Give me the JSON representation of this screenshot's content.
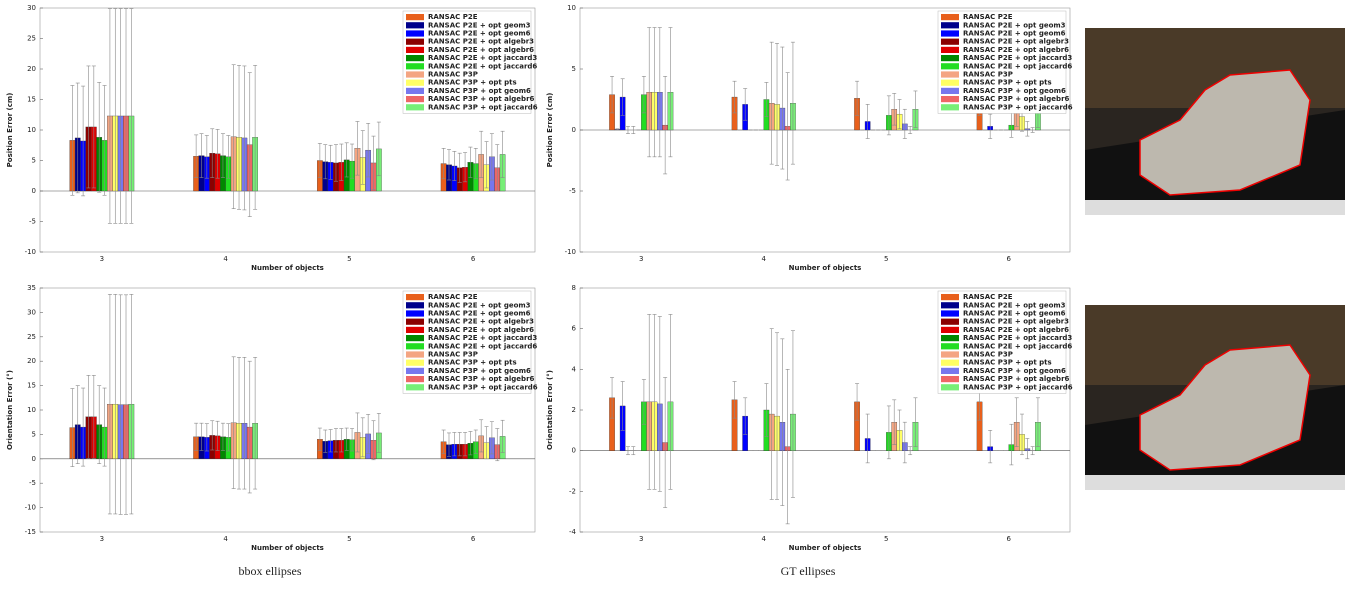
{
  "chart_data": [
    {
      "type": "bar",
      "xlabel": "Number of objects",
      "ylabel": "Position Error (cm)",
      "categories": [
        "3",
        "4",
        "5",
        "6"
      ],
      "ylim": [
        -10,
        30
      ],
      "yticks": [
        -10,
        -5,
        0,
        5,
        10,
        15,
        20,
        25,
        30
      ],
      "legend": "upper right",
      "series": [
        {
          "name": "RANSAC P2E",
          "color": "#e8601c",
          "values": [
            8.3,
            5.7,
            5.0,
            4.5
          ],
          "errors": [
            9,
            3.5,
            2.8,
            2.5
          ]
        },
        {
          "name": "RANSAC P2E + opt geom3",
          "color": "#00008b",
          "values": [
            8.7,
            5.8,
            4.8,
            4.3
          ],
          "errors": [
            9,
            3.6,
            2.8,
            2.5
          ]
        },
        {
          "name": "RANSAC P2E + opt geom6",
          "color": "#0000ff",
          "values": [
            8.2,
            5.6,
            4.7,
            4.1
          ],
          "errors": [
            9,
            3.5,
            2.8,
            2.4
          ]
        },
        {
          "name": "RANSAC P2E + opt algebr3",
          "color": "#8b0000",
          "values": [
            10.5,
            6.2,
            4.6,
            3.8
          ],
          "errors": [
            10,
            4,
            3,
            2.4
          ]
        },
        {
          "name": "RANSAC P2E + opt algebr6",
          "color": "#dd0000",
          "values": [
            10.5,
            6.1,
            4.7,
            3.9
          ],
          "errors": [
            10,
            4,
            3,
            2.4
          ]
        },
        {
          "name": "RANSAC P2E + opt jaccard3",
          "color": "#008800",
          "values": [
            8.8,
            5.8,
            5.1,
            4.7
          ],
          "errors": [
            9,
            3.6,
            2.8,
            2.5
          ]
        },
        {
          "name": "RANSAC P2E + opt jaccard6",
          "color": "#22dd22",
          "values": [
            8.3,
            5.6,
            4.9,
            4.5
          ],
          "errors": [
            9,
            3.5,
            2.8,
            2.5
          ]
        },
        {
          "name": "RANSAC P3P",
          "color": "#f4a582",
          "values": [
            12.3,
            8.9,
            7.0,
            6.0
          ],
          "errors": [
            17.6,
            11.8,
            4.4,
            3.8
          ]
        },
        {
          "name": "RANSAC P3P + opt pts",
          "color": "#ffff66",
          "values": [
            12.3,
            8.8,
            5.5,
            4.3
          ],
          "errors": [
            17.6,
            11.8,
            4.4,
            3.8
          ]
        },
        {
          "name": "RANSAC P3P + opt geom6",
          "color": "#7777ee",
          "values": [
            12.3,
            8.7,
            6.7,
            5.6
          ],
          "errors": [
            17.6,
            11.8,
            4.4,
            3.8
          ]
        },
        {
          "name": "RANSAC P3P + opt algebr6",
          "color": "#ee6666",
          "values": [
            12.3,
            7.6,
            4.6,
            3.8
          ],
          "errors": [
            17.6,
            11.8,
            4.4,
            3.8
          ]
        },
        {
          "name": "RANSAC P3P + opt jaccard6",
          "color": "#77ee77",
          "values": [
            12.3,
            8.8,
            6.9,
            6.0
          ],
          "errors": [
            17.6,
            11.8,
            4.4,
            3.8
          ]
        }
      ]
    },
    {
      "type": "bar",
      "xlabel": "Number of objects",
      "ylabel": "Position Error (cm)",
      "categories": [
        "3",
        "4",
        "5",
        "6"
      ],
      "ylim": [
        -10,
        10
      ],
      "yticks": [
        -10,
        -5,
        0,
        5,
        10
      ],
      "legend": "upper right",
      "series": [
        {
          "name": "RANSAC P2E",
          "color": "#e8601c",
          "values": [
            2.9,
            2.7,
            2.6,
            2.6
          ],
          "errors": [
            1.5,
            1.3,
            1.4,
            1.4
          ]
        },
        {
          "name": "RANSAC P2E + opt geom3",
          "color": "#00008b",
          "values": [
            0.05,
            0,
            0,
            0
          ],
          "errors": [
            0.05,
            0,
            0,
            0
          ]
        },
        {
          "name": "RANSAC P2E + opt geom6",
          "color": "#0000ff",
          "values": [
            2.7,
            2.1,
            0.7,
            0.3
          ],
          "errors": [
            1.5,
            1.3,
            1.4,
            1.0
          ]
        },
        {
          "name": "RANSAC P2E + opt algebr3",
          "color": "#8b0000",
          "values": [
            0,
            0,
            0,
            0
          ],
          "errors": [
            0.3,
            0,
            0,
            0
          ]
        },
        {
          "name": "RANSAC P2E + opt algebr6",
          "color": "#dd0000",
          "values": [
            0,
            0,
            0,
            0
          ],
          "errors": [
            0.3,
            0,
            0,
            0
          ]
        },
        {
          "name": "RANSAC P2E + opt jaccard3",
          "color": "#008800",
          "values": [
            0,
            0,
            0,
            0
          ],
          "errors": [
            0,
            0,
            0,
            0
          ]
        },
        {
          "name": "RANSAC P2E + opt jaccard6",
          "color": "#22dd22",
          "values": [
            2.9,
            2.5,
            1.2,
            0.4
          ],
          "errors": [
            1.5,
            1.4,
            1.6,
            1.0
          ]
        },
        {
          "name": "RANSAC P3P",
          "color": "#f4a582",
          "values": [
            3.1,
            2.2,
            1.7,
            1.7
          ],
          "errors": [
            5.3,
            5,
            1.3,
            1.4
          ]
        },
        {
          "name": "RANSAC P3P + opt pts",
          "color": "#ffff66",
          "values": [
            3.1,
            2.1,
            1.3,
            1.1
          ],
          "errors": [
            5.3,
            5,
            1.2,
            1.2
          ]
        },
        {
          "name": "RANSAC P3P + opt geom6",
          "color": "#7777ee",
          "values": [
            3.1,
            1.8,
            0.5,
            0.1
          ],
          "errors": [
            5.3,
            5,
            1.2,
            0.6
          ]
        },
        {
          "name": "RANSAC P3P + opt algebr6",
          "color": "#ee6666",
          "values": [
            0.4,
            0.3,
            0,
            0
          ],
          "errors": [
            4.0,
            4.4,
            0.3,
            0.2
          ]
        },
        {
          "name": "RANSAC P3P + opt jaccard6",
          "color": "#77ee77",
          "values": [
            3.1,
            2.2,
            1.7,
            1.7
          ],
          "errors": [
            5.3,
            5,
            1.5,
            1.5
          ]
        }
      ]
    },
    {
      "type": "bar",
      "xlabel": "Number of objects",
      "ylabel": "Orientation Error (°)",
      "categories": [
        "3",
        "4",
        "5",
        "6"
      ],
      "ylim": [
        -15,
        35
      ],
      "yticks": [
        -15,
        -10,
        -5,
        0,
        5,
        10,
        15,
        20,
        25,
        30,
        35
      ],
      "legend": "upper right",
      "series": [
        {
          "name": "RANSAC P2E",
          "color": "#e8601c",
          "values": [
            6.4,
            4.5,
            4.0,
            3.5
          ],
          "errors": [
            8,
            2.8,
            2.3,
            2.4
          ]
        },
        {
          "name": "RANSAC P2E + opt geom3",
          "color": "#00008b",
          "values": [
            7.0,
            4.5,
            3.6,
            2.9
          ],
          "errors": [
            8,
            2.8,
            2.3,
            2.4
          ]
        },
        {
          "name": "RANSAC P2E + opt geom6",
          "color": "#0000ff",
          "values": [
            6.5,
            4.4,
            3.7,
            3.0
          ],
          "errors": [
            8,
            2.8,
            2.3,
            2.4
          ]
        },
        {
          "name": "RANSAC P2E + opt algebr3",
          "color": "#8b0000",
          "values": [
            8.6,
            4.8,
            3.8,
            3.0
          ],
          "errors": [
            8.5,
            3,
            2.4,
            2.4
          ]
        },
        {
          "name": "RANSAC P2E + opt algebr6",
          "color": "#dd0000",
          "values": [
            8.6,
            4.7,
            3.8,
            3.0
          ],
          "errors": [
            8.5,
            3,
            2.4,
            2.4
          ]
        },
        {
          "name": "RANSAC P2E + opt jaccard3",
          "color": "#008800",
          "values": [
            7.0,
            4.5,
            4.0,
            3.2
          ],
          "errors": [
            8,
            2.8,
            2.3,
            2.4
          ]
        },
        {
          "name": "RANSAC P2E + opt jaccard6",
          "color": "#22dd22",
          "values": [
            6.5,
            4.4,
            3.9,
            3.5
          ],
          "errors": [
            8,
            2.8,
            2.3,
            2.4
          ]
        },
        {
          "name": "RANSAC P3P",
          "color": "#f4a582",
          "values": [
            11.2,
            7.4,
            5.4,
            4.7
          ],
          "errors": [
            22.5,
            13.5,
            4,
            3.3
          ]
        },
        {
          "name": "RANSAC P3P + opt pts",
          "color": "#ffff66",
          "values": [
            11.2,
            7.3,
            4.4,
            3.3
          ],
          "errors": [
            22.5,
            13.5,
            4,
            3.3
          ]
        },
        {
          "name": "RANSAC P3P + opt geom6",
          "color": "#7777ee",
          "values": [
            11.1,
            7.3,
            5.1,
            4.3
          ],
          "errors": [
            22.5,
            13.5,
            4,
            3.3
          ]
        },
        {
          "name": "RANSAC P3P + opt algebr6",
          "color": "#ee6666",
          "values": [
            11.1,
            6.5,
            3.8,
            2.9
          ],
          "errors": [
            22.5,
            13.5,
            4,
            3.3
          ]
        },
        {
          "name": "RANSAC P3P + opt jaccard6",
          "color": "#77ee77",
          "values": [
            11.2,
            7.3,
            5.3,
            4.6
          ],
          "errors": [
            22.5,
            13.5,
            4,
            3.3
          ]
        }
      ]
    },
    {
      "type": "bar",
      "xlabel": "Number of objects",
      "ylabel": "Orientation Error (°)",
      "categories": [
        "3",
        "4",
        "5",
        "6"
      ],
      "ylim": [
        -4,
        8
      ],
      "yticks": [
        -4,
        -2,
        0,
        2,
        4,
        6,
        8
      ],
      "legend": "upper right",
      "series": [
        {
          "name": "RANSAC P2E",
          "color": "#e8601c",
          "values": [
            2.6,
            2.5,
            2.4,
            2.4
          ],
          "errors": [
            1,
            0.9,
            0.9,
            0.9
          ]
        },
        {
          "name": "RANSAC P2E + opt geom3",
          "color": "#00008b",
          "values": [
            0,
            0,
            0,
            0
          ],
          "errors": [
            0,
            0,
            0,
            0
          ]
        },
        {
          "name": "RANSAC P2E + opt geom6",
          "color": "#0000ff",
          "values": [
            2.2,
            1.7,
            0.6,
            0.2
          ],
          "errors": [
            1.2,
            0.9,
            1.2,
            0.8
          ]
        },
        {
          "name": "RANSAC P2E + opt algebr3",
          "color": "#8b0000",
          "values": [
            0,
            0,
            0,
            0
          ],
          "errors": [
            0.2,
            0,
            0,
            0
          ]
        },
        {
          "name": "RANSAC P2E + opt algebr6",
          "color": "#dd0000",
          "values": [
            0,
            0,
            0,
            0
          ],
          "errors": [
            0.2,
            0,
            0,
            0
          ]
        },
        {
          "name": "RANSAC P2E + opt jaccard3",
          "color": "#008800",
          "values": [
            0,
            0,
            0,
            0
          ],
          "errors": [
            0,
            0,
            0,
            0
          ]
        },
        {
          "name": "RANSAC P2E + opt jaccard6",
          "color": "#22dd22",
          "values": [
            2.4,
            2.0,
            0.9,
            0.3
          ],
          "errors": [
            1.1,
            1.3,
            1.3,
            1.0
          ]
        },
        {
          "name": "RANSAC P3P",
          "color": "#f4a582",
          "values": [
            2.4,
            1.8,
            1.4,
            1.4
          ],
          "errors": [
            4.3,
            4.2,
            1.1,
            1.2
          ]
        },
        {
          "name": "RANSAC P3P + opt pts",
          "color": "#ffff66",
          "values": [
            2.4,
            1.7,
            1.0,
            0.8
          ],
          "errors": [
            4.3,
            4.1,
            1.0,
            1.0
          ]
        },
        {
          "name": "RANSAC P3P + opt geom6",
          "color": "#7777ee",
          "values": [
            2.3,
            1.4,
            0.4,
            0.1
          ],
          "errors": [
            4.3,
            4.1,
            1.0,
            0.5
          ]
        },
        {
          "name": "RANSAC P3P + opt algebr6",
          "color": "#ee6666",
          "values": [
            0.4,
            0.2,
            0,
            0
          ],
          "errors": [
            3.2,
            3.8,
            0.2,
            0.2
          ]
        },
        {
          "name": "RANSAC P3P + opt jaccard6",
          "color": "#77ee77",
          "values": [
            2.4,
            1.8,
            1.4,
            1.4
          ],
          "errors": [
            4.3,
            4.1,
            1.2,
            1.2
          ]
        }
      ]
    }
  ],
  "captions": [
    "bbox ellipses",
    "GT ellipses"
  ]
}
